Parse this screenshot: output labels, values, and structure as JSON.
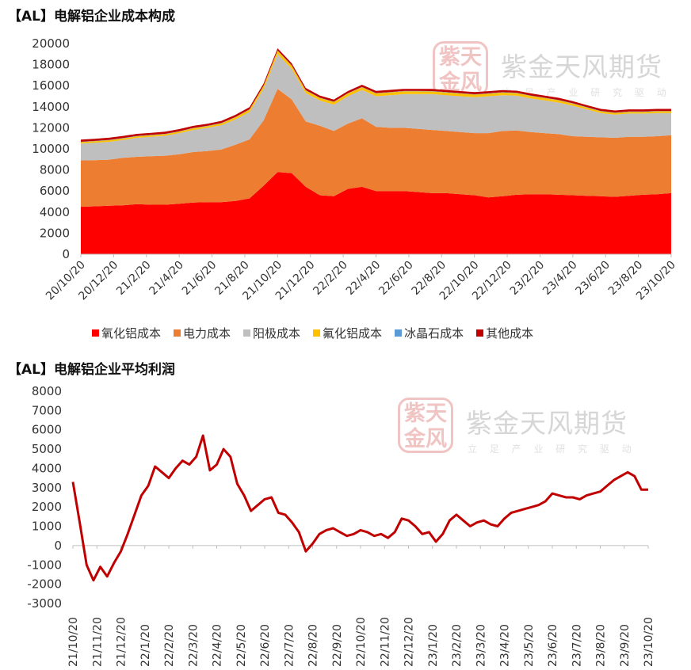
{
  "watermark": {
    "seal_text": "紫天金风",
    "brand": "紫金天风期货",
    "slogan": "立 足 产 业 研 究 驱 动"
  },
  "chart_data": [
    {
      "type": "area",
      "stacked": true,
      "title": "【AL】电解铝企业成本构成",
      "ylim": [
        0,
        20000
      ],
      "yticks": [
        0,
        2000,
        4000,
        6000,
        8000,
        10000,
        12000,
        14000,
        16000,
        18000,
        20000
      ],
      "x_tick_labels": [
        "20/10/20",
        "20/12/20",
        "21/2/20",
        "21/4/20",
        "21/6/20",
        "21/8/20",
        "21/10/20",
        "21/12/20",
        "22/2/20",
        "22/4/20",
        "22/6/20",
        "22/8/20",
        "22/10/20",
        "22/12/20",
        "23/2/20",
        "23/4/20",
        "23/6/20",
        "23/8/20",
        "23/10/20"
      ],
      "legend_position": "bottom",
      "series": [
        {
          "name": "氧化铝成本",
          "color": "#ff0000",
          "values": [
            4500,
            4550,
            4600,
            4650,
            4750,
            4700,
            4700,
            4800,
            4900,
            4950,
            4950,
            5050,
            5300,
            6500,
            7800,
            7700,
            6400,
            5600,
            5500,
            6200,
            6400,
            6000,
            6000,
            6000,
            5900,
            5800,
            5800,
            5700,
            5600,
            5400,
            5500,
            5650,
            5700,
            5700,
            5650,
            5600,
            5550,
            5500,
            5450,
            5550,
            5650,
            5700,
            5800
          ]
        },
        {
          "name": "电力成本",
          "color": "#ed7d31",
          "values": [
            4400,
            4380,
            4380,
            4500,
            4500,
            4600,
            4650,
            4700,
            4800,
            4850,
            5000,
            5350,
            5600,
            6200,
            7900,
            7000,
            6200,
            6600,
            6200,
            6200,
            6500,
            6100,
            6000,
            6000,
            6000,
            6000,
            5900,
            5900,
            5900,
            6100,
            6200,
            6100,
            5900,
            5800,
            5750,
            5600,
            5600,
            5600,
            5600,
            5600,
            5500,
            5500,
            5500
          ]
        },
        {
          "name": "阳极成本",
          "color": "#bfbfbf",
          "values": [
            1600,
            1650,
            1700,
            1700,
            1800,
            1850,
            1900,
            2000,
            2100,
            2200,
            2300,
            2400,
            2600,
            3000,
            3300,
            2900,
            2700,
            2400,
            2500,
            2600,
            2700,
            2900,
            3100,
            3200,
            3300,
            3400,
            3400,
            3400,
            3400,
            3500,
            3400,
            3300,
            3200,
            3100,
            3000,
            2900,
            2600,
            2300,
            2200,
            2200,
            2200,
            2200,
            2100
          ]
        },
        {
          "name": "氟化铝成本",
          "color": "#ffc000",
          "values": [
            150,
            150,
            150,
            150,
            150,
            150,
            150,
            150,
            160,
            160,
            180,
            200,
            230,
            270,
            320,
            300,
            260,
            240,
            250,
            260,
            260,
            270,
            270,
            270,
            270,
            260,
            260,
            260,
            260,
            250,
            250,
            250,
            240,
            230,
            220,
            200,
            180,
            170,
            170,
            170,
            170,
            170,
            170
          ]
        },
        {
          "name": "冰晶石成本",
          "color": "#5b9bd5",
          "values": [
            30,
            30,
            30,
            30,
            30,
            30,
            30,
            30,
            30,
            30,
            30,
            30,
            30,
            30,
            30,
            30,
            30,
            30,
            30,
            30,
            30,
            30,
            30,
            30,
            30,
            30,
            30,
            30,
            30,
            30,
            30,
            30,
            30,
            30,
            30,
            30,
            30,
            30,
            30,
            30,
            30,
            30,
            30
          ]
        },
        {
          "name": "其他成本",
          "color": "#c00000",
          "values": [
            200,
            200,
            200,
            200,
            200,
            200,
            200,
            200,
            200,
            200,
            200,
            200,
            200,
            200,
            200,
            200,
            200,
            200,
            200,
            200,
            200,
            200,
            200,
            200,
            200,
            200,
            200,
            200,
            200,
            200,
            200,
            200,
            200,
            200,
            200,
            200,
            200,
            200,
            200,
            200,
            200,
            200,
            200
          ]
        }
      ]
    },
    {
      "type": "line",
      "title": "【AL】电解铝企业平均利润",
      "ylim": [
        -3000,
        8000
      ],
      "yticks": [
        -3000,
        -2000,
        -1000,
        0,
        1000,
        2000,
        3000,
        4000,
        5000,
        6000,
        7000,
        8000
      ],
      "x_tick_labels": [
        "21/10/20",
        "21/11/20",
        "21/12/20",
        "22/1/20",
        "22/2/20",
        "22/3/20",
        "22/4/20",
        "22/5/20",
        "22/6/20",
        "22/7/20",
        "22/8/20",
        "22/9/20",
        "22/10/20",
        "22/11/20",
        "22/12/20",
        "23/1/20",
        "23/2/20",
        "23/3/20",
        "23/4/20",
        "23/5/20",
        "23/6/20",
        "23/7/20",
        "23/8/20",
        "23/9/20",
        "23/10/20"
      ],
      "series": [
        {
          "color": "#c00000",
          "values": [
            3300,
            1200,
            -1000,
            -1800,
            -1100,
            -1600,
            -900,
            -300,
            600,
            1600,
            2600,
            3100,
            4100,
            3800,
            3500,
            4000,
            4400,
            4200,
            4600,
            5700,
            3900,
            4200,
            5000,
            4600,
            3200,
            2600,
            1800,
            2100,
            2400,
            2500,
            1700,
            1600,
            1200,
            700,
            -300,
            100,
            600,
            800,
            900,
            700,
            500,
            600,
            800,
            700,
            500,
            600,
            400,
            700,
            1400,
            1300,
            1000,
            600,
            700,
            200,
            600,
            1300,
            1600,
            1300,
            1000,
            1200,
            1300,
            1100,
            1000,
            1400,
            1700,
            1800,
            1900,
            2000,
            2100,
            2300,
            2700,
            2600,
            2500,
            2500,
            2400,
            2600,
            2700,
            2800,
            3100,
            3400,
            3600,
            3800,
            3600,
            2900,
            2900
          ]
        }
      ]
    }
  ]
}
